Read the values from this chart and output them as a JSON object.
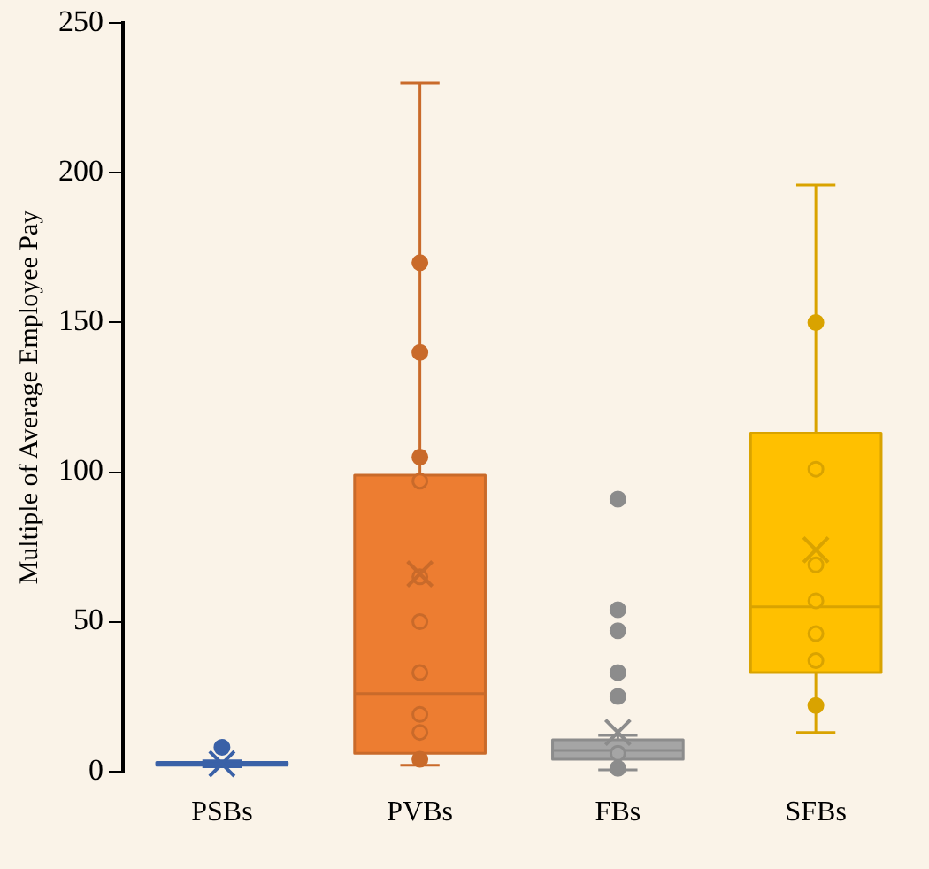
{
  "chart_data": {
    "type": "box",
    "ylabel": "Multiple of Average Employee Pay",
    "categories": [
      "PSBs",
      "PVBs",
      "FBs",
      "SFBs"
    ],
    "colors": [
      "#4472c4",
      "#ed7d31",
      "#a5a5a5",
      "#ffc000"
    ],
    "ylim": [
      0,
      250
    ],
    "yticks": [
      0,
      50,
      100,
      150,
      200,
      250
    ],
    "grid": false,
    "boxes": [
      {
        "low": 1.5,
        "q1": 2,
        "median": 2.5,
        "q3": 3,
        "high": 3.5,
        "mean": 2.5,
        "outliers": [
          8
        ]
      },
      {
        "low": 2,
        "q1": 6,
        "median": 26,
        "q3": 99,
        "high": 230,
        "mean": 66,
        "outliers": [
          170,
          140,
          105,
          97,
          65,
          50,
          33,
          19,
          13,
          4
        ]
      },
      {
        "low": 0.5,
        "q1": 4,
        "median": 7,
        "q3": 10.5,
        "high": 12,
        "mean": 13,
        "outliers": [
          91,
          54,
          47,
          33,
          25,
          6,
          1
        ]
      },
      {
        "low": 13,
        "q1": 33,
        "median": 55,
        "q3": 113,
        "high": 196,
        "mean": 74,
        "outliers": [
          150,
          101,
          69,
          57,
          46,
          37,
          22
        ]
      }
    ]
  }
}
